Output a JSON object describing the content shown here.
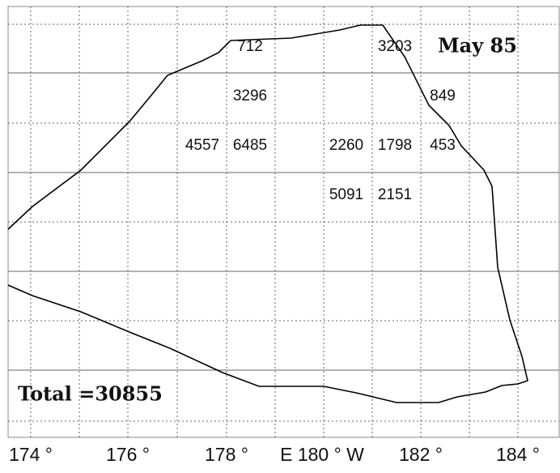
{
  "map": {
    "title": "May 85",
    "total": "Total =30855",
    "x_labels": [
      "174 °",
      "176 °",
      "178 °",
      "E 180 ° W",
      "182 °",
      "184 °"
    ],
    "cells": [
      712,
      3203,
      3296,
      849,
      4557,
      6485,
      2260,
      1798,
      453,
      5091,
      2151
    ]
  }
}
